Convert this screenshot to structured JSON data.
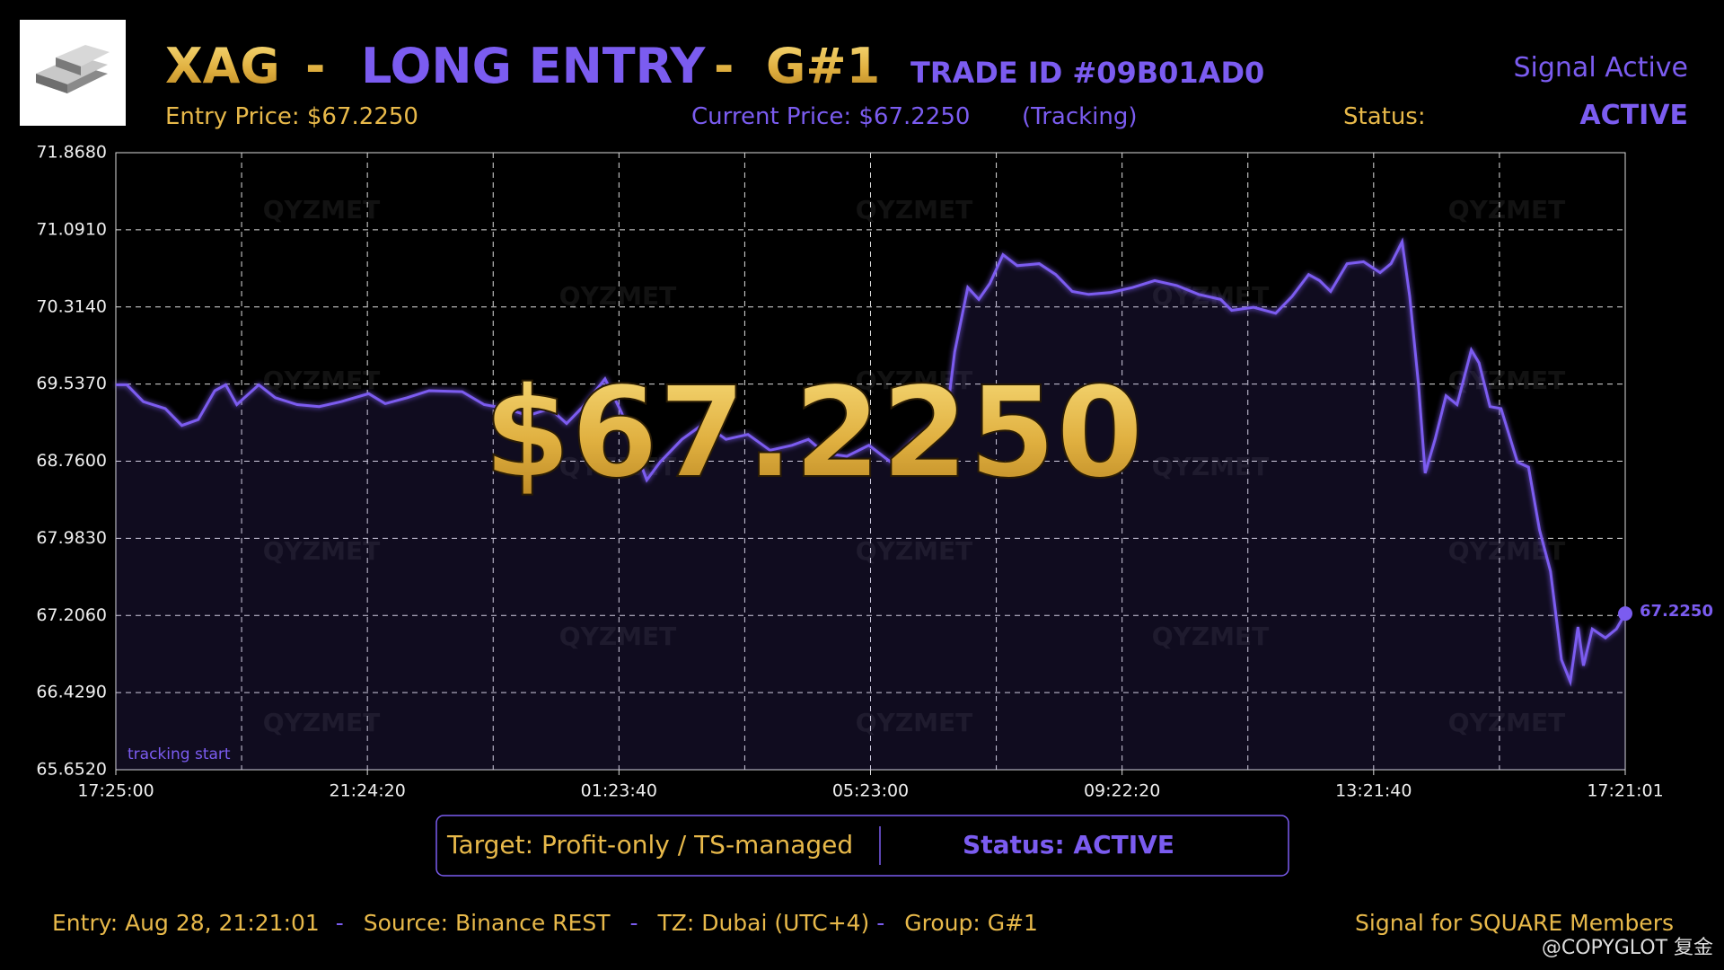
{
  "header": {
    "symbol": "XAG",
    "separator": "-",
    "side": "LONG ENTRY",
    "group": "G#1",
    "trade_id": "TRADE ID #09B01AD0",
    "signal": "Signal Active",
    "entry_price": "Entry Price: $67.2250",
    "current_price": "Current Price: $67.2250",
    "tracking": "(Tracking)",
    "status_label": "Status:",
    "status_value": "ACTIVE",
    "big_price": "$67.2250"
  },
  "chart_data": {
    "type": "line",
    "color": "#7b5cf0",
    "grid": true,
    "annotation": "tracking start",
    "watermark": "QYZMET",
    "end_label": "67.2250",
    "xlim": [
      0,
      86161
    ],
    "xticks": [
      {
        "value": 0,
        "label": "17:25:00"
      },
      {
        "value": 14360,
        "label": "21:24:20"
      },
      {
        "value": 28720,
        "label": "01:23:40"
      },
      {
        "value": 43080,
        "label": "05:23:00"
      },
      {
        "value": 57440,
        "label": "09:22:20"
      },
      {
        "value": 71800,
        "label": "13:21:40"
      },
      {
        "value": 86161,
        "label": "17:21:01"
      }
    ],
    "ylim": [
      65.652,
      71.868
    ],
    "yticks": [
      {
        "value": 65.652,
        "label": "65.6520"
      },
      {
        "value": 66.429,
        "label": "66.4290"
      },
      {
        "value": 67.206,
        "label": "67.2060"
      },
      {
        "value": 67.983,
        "label": "67.9830"
      },
      {
        "value": 68.76,
        "label": "68.7600"
      },
      {
        "value": 69.537,
        "label": "69.5370"
      },
      {
        "value": 70.314,
        "label": "70.3140"
      },
      {
        "value": 71.091,
        "label": "71.0910"
      },
      {
        "value": 71.868,
        "label": "71.8680"
      }
    ],
    "x": [
      0,
      628,
      1569,
      2824,
      3765,
      4707,
      5648,
      6275,
      6903,
      8158,
      9099,
      10354,
      11610,
      12865,
      14433,
      15375,
      16630,
      17885,
      19768,
      21023,
      22278,
      23533,
      24788,
      25729,
      26670,
      27925,
      28867,
      30310,
      31063,
      32318,
      33573,
      34828,
      36084,
      37339,
      38594,
      39535,
      40476,
      41731,
      42986,
      44242,
      45497,
      46752,
      47380,
      47882,
      48634,
      49262,
      49889,
      50643,
      51458,
      52713,
      53655,
      54596,
      55537,
      56792,
      58047,
      59303,
      60558,
      61813,
      63068,
      63695,
      64950,
      66206,
      67147,
      68088,
      68716,
      69343,
      70284,
      71226,
      72167,
      72795,
      73422,
      73862,
      74363,
      74740,
      75305,
      75932,
      76560,
      77376,
      77815,
      78443,
      79070,
      80012,
      80639,
      81267,
      81894,
      82522,
      83024,
      83463,
      83777,
      84279,
      85032,
      85659,
      86161
    ],
    "values": [
      69.53,
      69.53,
      69.36,
      69.29,
      69.12,
      69.18,
      69.47,
      69.53,
      69.33,
      69.53,
      69.4,
      69.33,
      69.31,
      69.36,
      69.44,
      69.34,
      69.4,
      69.47,
      69.46,
      69.33,
      69.29,
      69.22,
      69.29,
      69.14,
      69.31,
      69.59,
      69.25,
      68.57,
      68.75,
      68.98,
      69.14,
      68.98,
      69.03,
      68.87,
      68.92,
      68.98,
      68.84,
      68.81,
      68.92,
      68.75,
      68.98,
      69.14,
      69.14,
      69.86,
      70.51,
      70.39,
      70.55,
      70.84,
      70.73,
      70.75,
      70.64,
      70.47,
      70.44,
      70.46,
      70.51,
      70.58,
      70.53,
      70.44,
      70.39,
      70.28,
      70.31,
      70.25,
      70.42,
      70.64,
      70.58,
      70.47,
      70.75,
      70.77,
      70.66,
      70.75,
      70.97,
      70.42,
      69.53,
      68.64,
      68.98,
      69.42,
      69.33,
      69.88,
      69.75,
      69.31,
      69.29,
      68.75,
      68.7,
      68.07,
      67.65,
      66.76,
      66.54,
      67.09,
      66.7,
      67.07,
      66.98,
      67.07,
      67.225
    ]
  },
  "footer": {
    "target": "Target: Profit-only / TS-managed",
    "box_status": "Status: ACTIVE",
    "entry": "Entry: Aug 28, 21:21:01",
    "separator": "-",
    "source": "Source: Binance REST",
    "tz": "TZ: Dubai (UTC+4)",
    "group": "Group: G#1",
    "members": "Signal for SQUARE Members",
    "watermark": "@COPYGLOT 复金"
  }
}
